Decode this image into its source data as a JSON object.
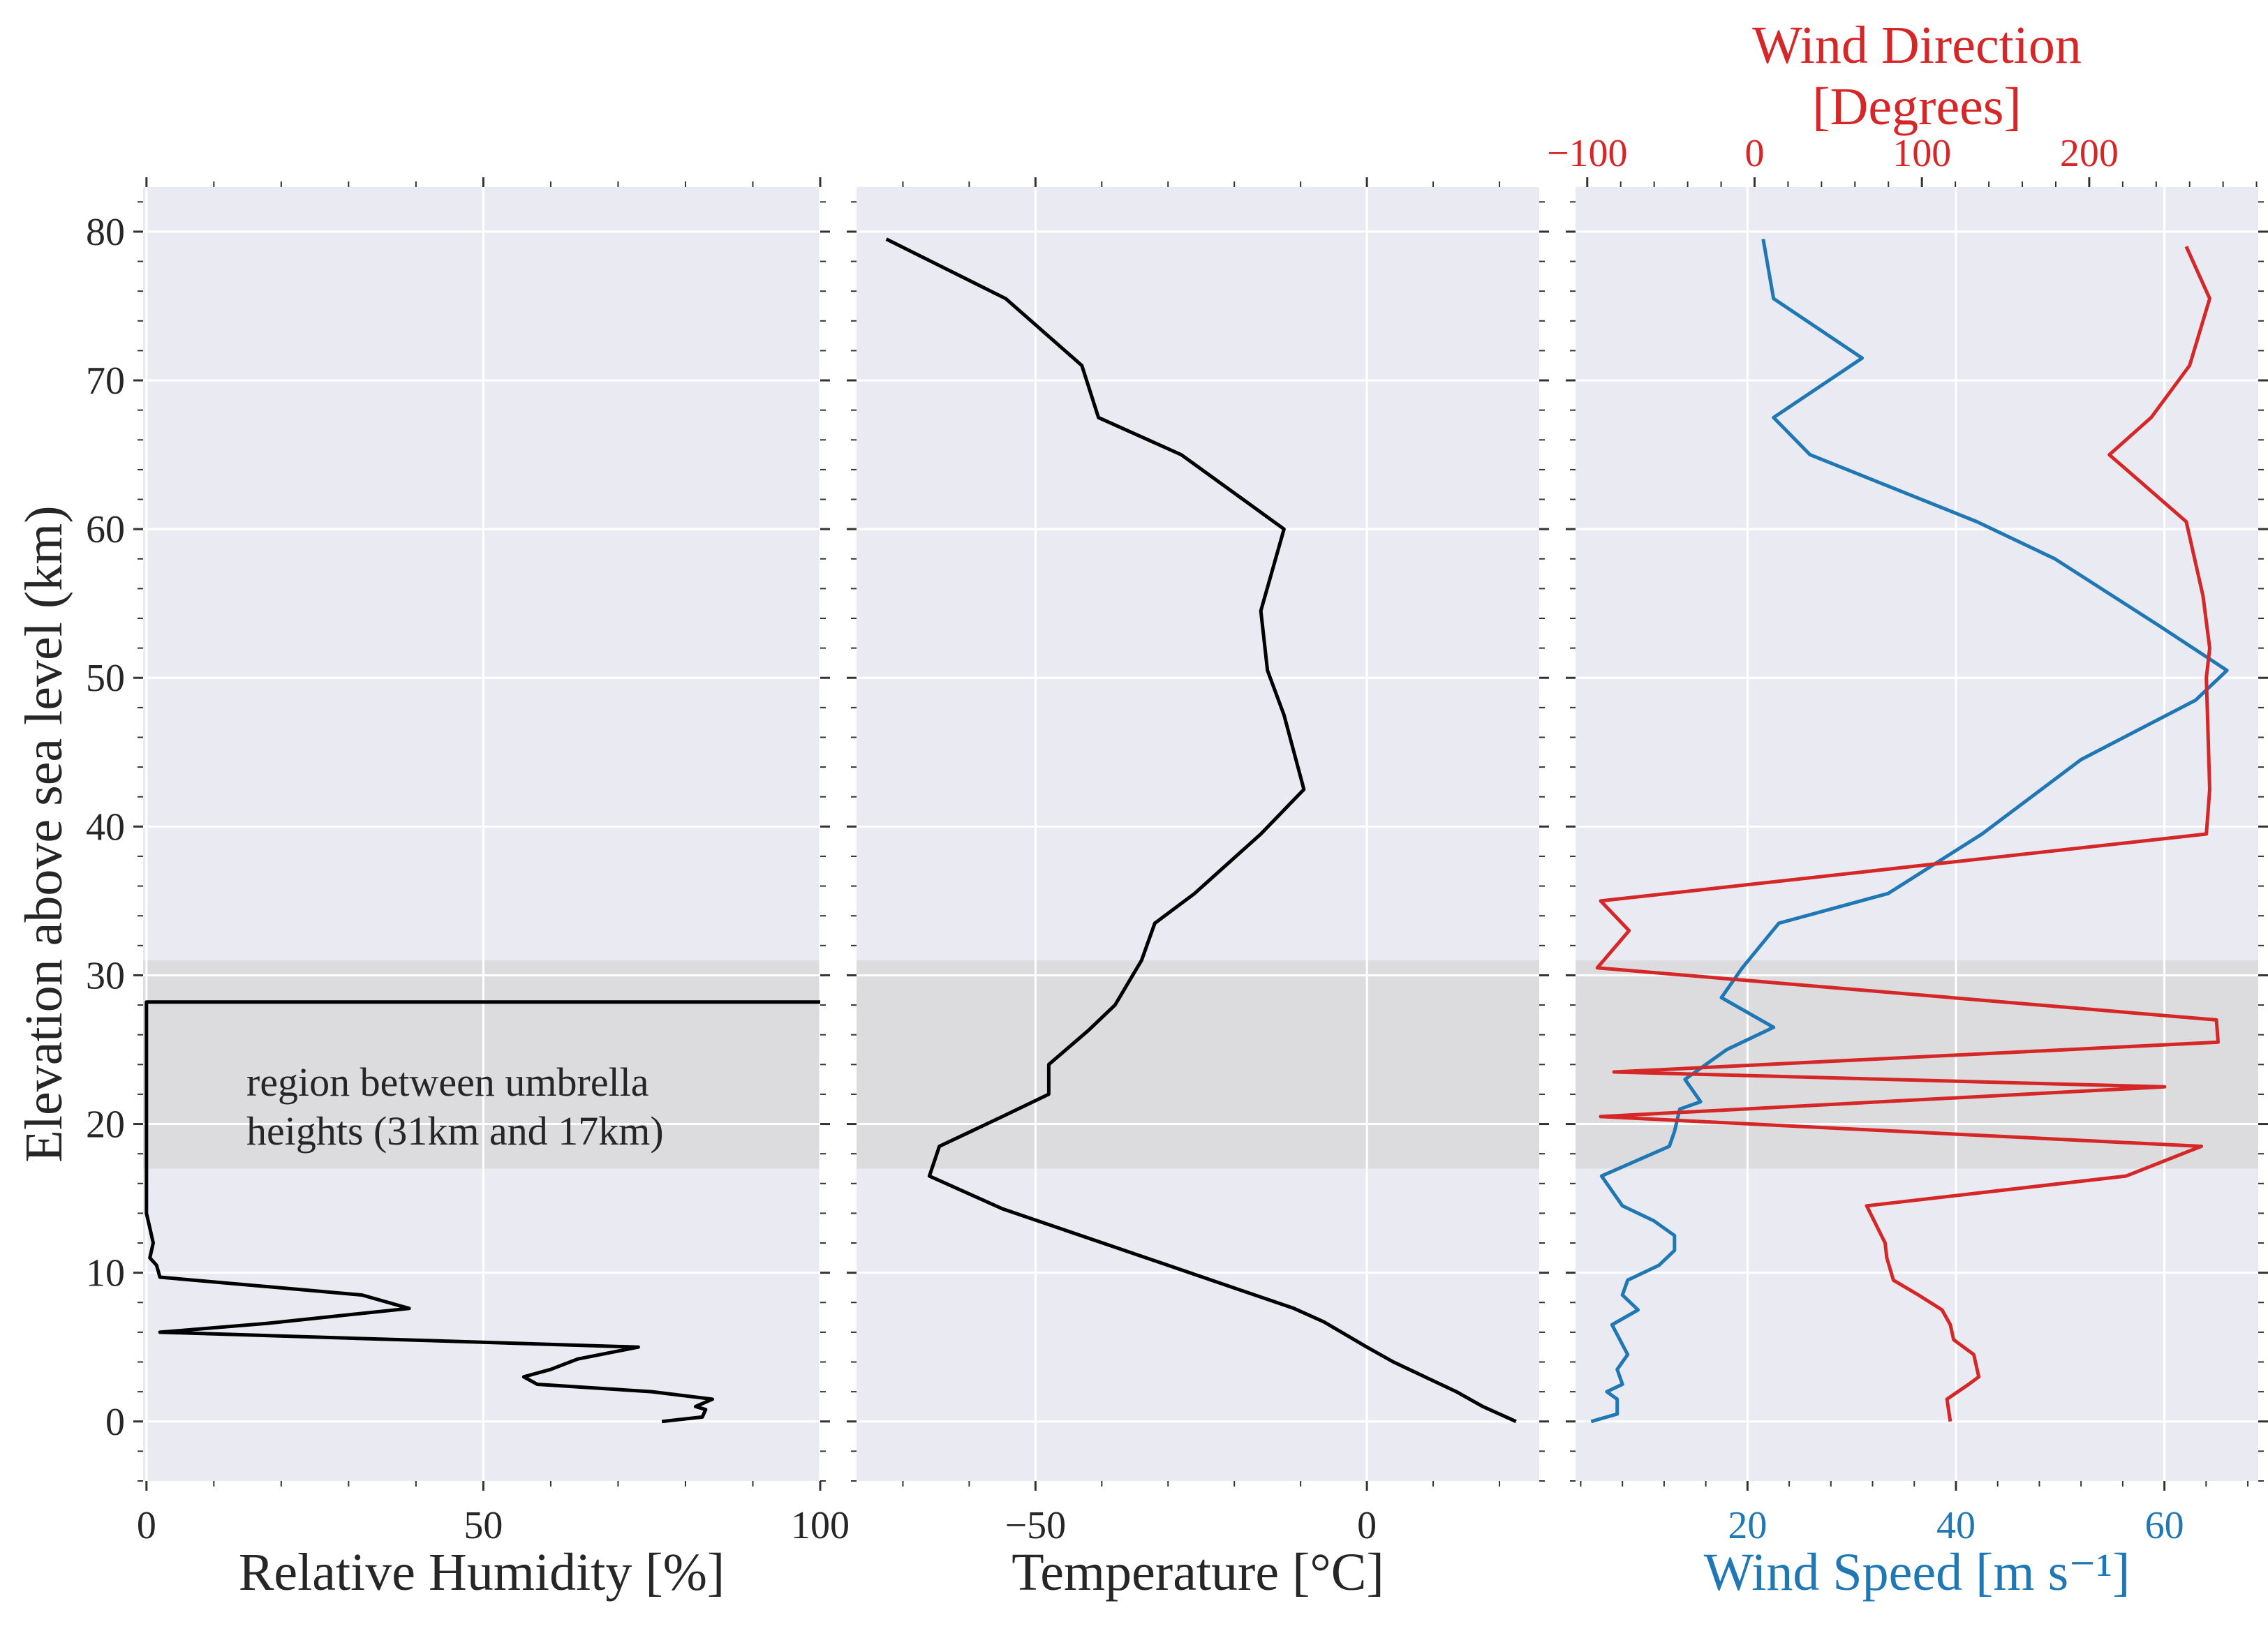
{
  "colors": {
    "panel_bg": "#EAEAF2",
    "grid": "#FFFFFF",
    "shade": "#DCDCDF",
    "profile": "#000000",
    "wind_speed": "#1F77B4",
    "wind_direction": "#D62728",
    "text": "#262626"
  },
  "chart_data": [
    {
      "type": "line",
      "panel": "humidity",
      "xlabel": "Relative Humidity [%]",
      "ylabel": "Elevation above sea level (km)",
      "xlim": [
        -0.5,
        100
      ],
      "ylim": [
        -4,
        83
      ],
      "xticks": [
        0,
        50,
        100
      ],
      "xtick_labels": [
        "0",
        "50",
        "100"
      ],
      "yticks": [
        0,
        10,
        20,
        30,
        40,
        50,
        60,
        70,
        80
      ],
      "ytick_labels": [
        "0",
        "10",
        "20",
        "30",
        "40",
        "50",
        "60",
        "70",
        "80"
      ],
      "grid": true,
      "shaded_region": {
        "y": [
          17,
          31
        ]
      },
      "annotation": [
        "region between umbrella",
        "heights (31km and 17km)"
      ],
      "series": [
        {
          "color": "#000000",
          "points": [
            [
              76.5,
              0
            ],
            [
              82.5,
              0.3
            ],
            [
              83,
              0.8
            ],
            [
              81.5,
              1
            ],
            [
              84,
              1.5
            ],
            [
              75,
              2
            ],
            [
              58,
              2.5
            ],
            [
              56,
              3
            ],
            [
              60,
              3.5
            ],
            [
              64,
              4.2
            ],
            [
              73,
              5
            ],
            [
              2,
              6
            ],
            [
              18,
              6.6
            ],
            [
              39,
              7.6
            ],
            [
              32,
              8.5
            ],
            [
              2,
              9.7
            ],
            [
              1.5,
              10.5
            ],
            [
              0.5,
              11
            ],
            [
              1,
              12
            ],
            [
              0.5,
              13
            ],
            [
              0,
              14
            ],
            [
              0,
              16
            ],
            [
              0,
              20
            ],
            [
              0,
              25
            ],
            [
              0,
              28.2
            ],
            [
              100,
              28.2
            ]
          ]
        }
      ]
    },
    {
      "type": "line",
      "panel": "temperature",
      "xlabel": "Temperature [°C]",
      "xlim": [
        -77,
        26
      ],
      "ylim": [
        -4,
        83
      ],
      "xticks": [
        -50,
        0
      ],
      "xtick_labels": [
        "−50",
        "0"
      ],
      "grid": true,
      "shaded_region": {
        "y": [
          17,
          31
        ]
      },
      "series": [
        {
          "color": "#000000",
          "points": [
            [
              22.5,
              0
            ],
            [
              17.5,
              1
            ],
            [
              13.5,
              2
            ],
            [
              4,
              4
            ],
            [
              0,
              5
            ],
            [
              -6.5,
              6.7
            ],
            [
              -11,
              7.6
            ],
            [
              -30,
              10.5
            ],
            [
              -55,
              14.3
            ],
            [
              -66,
              16.5
            ],
            [
              -64.5,
              18.5
            ],
            [
              -55,
              20.5
            ],
            [
              -48,
              22
            ],
            [
              -48,
              24
            ],
            [
              -42,
              26.3
            ],
            [
              -38,
              28
            ],
            [
              -34,
              31
            ],
            [
              -32,
              33.5
            ],
            [
              -26,
              35.5
            ],
            [
              -16,
              39.5
            ],
            [
              -9.5,
              42.5
            ],
            [
              -12.5,
              47.5
            ],
            [
              -15,
              50.5
            ],
            [
              -16,
              54.5
            ],
            [
              -12.5,
              60
            ],
            [
              -28,
              65
            ],
            [
              -40.5,
              67.5
            ],
            [
              -43,
              71
            ],
            [
              -54.5,
              75.5
            ],
            [
              -72.5,
              79.5
            ]
          ]
        }
      ]
    },
    {
      "type": "line",
      "panel": "wind",
      "xlabel": "Wind Speed [m s⁻¹]",
      "xlabel_top": [
        "Wind Direction",
        "[Degrees]"
      ],
      "xlim": [
        3.5,
        69
      ],
      "ylim": [
        -4,
        83
      ],
      "xticks": [
        20,
        40,
        60
      ],
      "xtick_labels": [
        "20",
        "40",
        "60"
      ],
      "top_xlim": [
        -107,
        301
      ],
      "top_xticks": [
        -100,
        0,
        100,
        200
      ],
      "top_xtick_labels": [
        "−100",
        "0",
        "100",
        "200"
      ],
      "grid": true,
      "shaded_region": {
        "y": [
          17,
          31
        ]
      },
      "series": [
        {
          "axis": "bottom",
          "color": "#1F77B4",
          "points": [
            [
              5,
              0
            ],
            [
              7.5,
              0.5
            ],
            [
              7.5,
              1.5
            ],
            [
              6.5,
              2
            ],
            [
              8,
              2.5
            ],
            [
              7.5,
              3.5
            ],
            [
              8.5,
              4.5
            ],
            [
              7,
              6.5
            ],
            [
              9.5,
              7.5
            ],
            [
              8,
              8.5
            ],
            [
              8.5,
              9.5
            ],
            [
              11.5,
              10.5
            ],
            [
              13,
              11.5
            ],
            [
              13,
              12.5
            ],
            [
              11,
              13.5
            ],
            [
              8,
              14.5
            ],
            [
              6,
              16.5
            ],
            [
              12.5,
              18.5
            ],
            [
              13,
              19.5
            ],
            [
              13.5,
              21
            ],
            [
              15.5,
              21.5
            ],
            [
              14,
              23
            ],
            [
              18,
              25
            ],
            [
              22.5,
              26.5
            ],
            [
              17.5,
              28.5
            ],
            [
              19.5,
              30.5
            ],
            [
              23,
              33.5
            ],
            [
              33.5,
              35.5
            ],
            [
              42.5,
              39.5
            ],
            [
              52,
              44.5
            ],
            [
              63,
              48.5
            ],
            [
              66,
              50.5
            ],
            [
              59.5,
              53.5
            ],
            [
              49.5,
              58
            ],
            [
              42,
              60.5
            ],
            [
              26,
              65
            ],
            [
              22.5,
              67.5
            ],
            [
              31,
              71.5
            ],
            [
              22.5,
              75.5
            ],
            [
              21.5,
              79.5
            ]
          ]
        },
        {
          "axis": "top",
          "color": "#D62728",
          "points": [
            [
              117,
              0
            ],
            [
              115,
              1.5
            ],
            [
              128,
              2.5
            ],
            [
              134,
              3
            ],
            [
              131,
              4.5
            ],
            [
              119,
              5.5
            ],
            [
              117,
              6.5
            ],
            [
              112,
              7.5
            ],
            [
              98,
              8.5
            ],
            [
              83,
              9.5
            ],
            [
              79,
              11
            ],
            [
              78,
              12
            ],
            [
              67,
              14.5
            ],
            [
              222,
              16.5
            ],
            [
              267,
              18.5
            ],
            [
              -92,
              20.5
            ],
            [
              245,
              22.5
            ],
            [
              -84,
              23.5
            ],
            [
              277,
              25.5
            ],
            [
              276,
              27
            ],
            [
              -94,
              30.5
            ],
            [
              -75,
              33
            ],
            [
              -92,
              35
            ],
            [
              270,
              39.5
            ],
            [
              272,
              42.5
            ],
            [
              270,
              50
            ],
            [
              272,
              52
            ],
            [
              268,
              55.5
            ],
            [
              258,
              60.5
            ],
            [
              212,
              65
            ],
            [
              237,
              67.5
            ],
            [
              260,
              71
            ],
            [
              272,
              75.5
            ],
            [
              258,
              79
            ]
          ]
        }
      ]
    }
  ]
}
